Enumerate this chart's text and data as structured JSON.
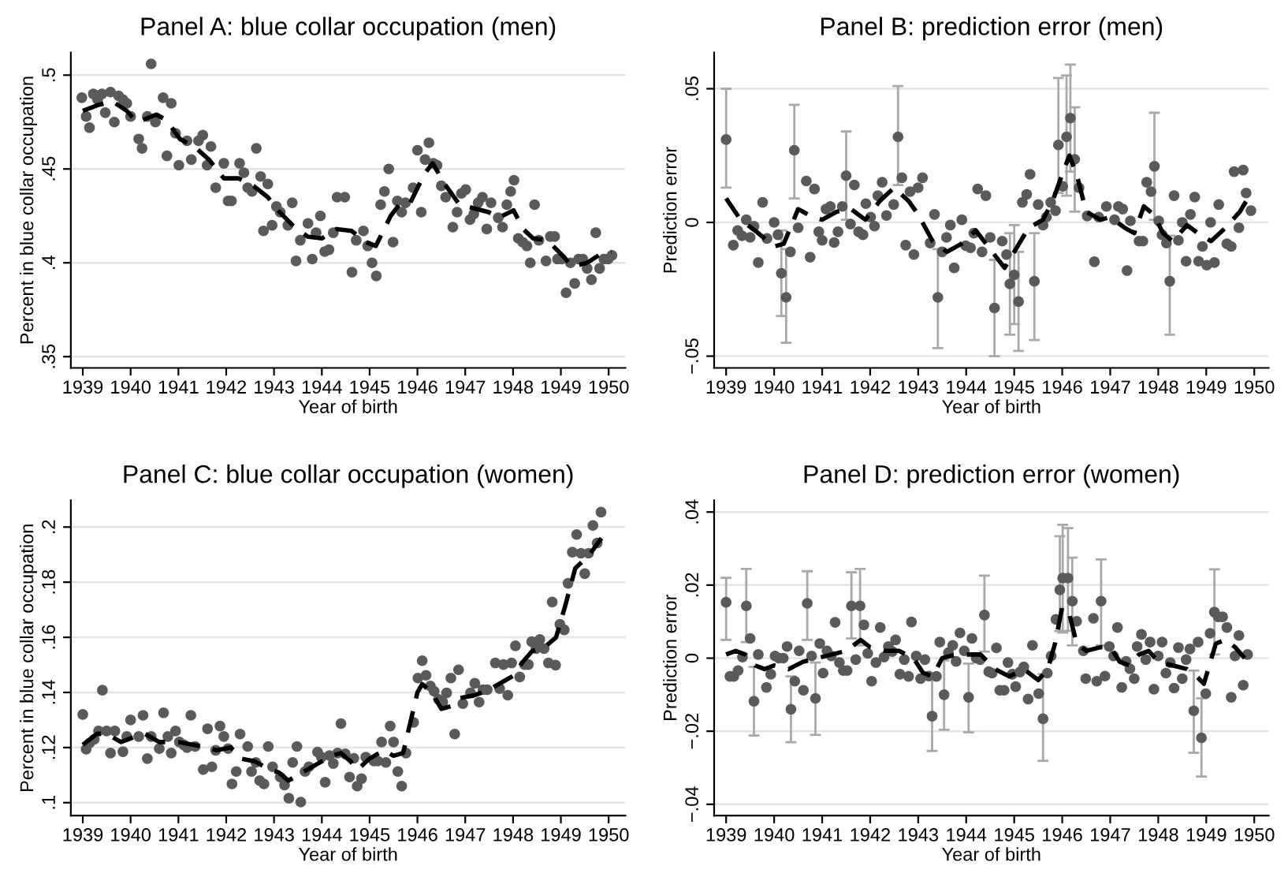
{
  "chart_data": [
    {
      "type": "scatter",
      "title": "Panel A: blue collar occupation (men)",
      "xlabel": "Year of birth",
      "ylabel": "Percent in blue collar occupation",
      "xlim": [
        1938.75,
        1950.35
      ],
      "xticks": [
        1939,
        1940,
        1941,
        1942,
        1943,
        1944,
        1945,
        1946,
        1947,
        1948,
        1949,
        1950
      ],
      "ylim": [
        0.344,
        0.512
      ],
      "yticks": [
        {
          "value": 0.35,
          "label": ".35"
        },
        {
          "value": 0.4,
          "label": ".4"
        },
        {
          "value": 0.45,
          "label": ".45"
        },
        {
          "value": 0.5,
          "label": ".5"
        }
      ],
      "grid": "y",
      "legend": false,
      "series": [
        {
          "type": "scatter",
          "marker": "circle",
          "color": "#5a5a5a",
          "x": [
            1938.98,
            1939.07,
            1939.14,
            1939.22,
            1939.31,
            1939.4,
            1939.47,
            1939.58,
            1939.66,
            1939.75,
            1939.84,
            1939.92,
            1940.0,
            1940.17,
            1940.24,
            1940.35,
            1940.43,
            1940.52,
            1940.68,
            1940.76,
            1940.85,
            1940.94,
            1941.01,
            1941.18,
            1941.27,
            1941.42,
            1941.51,
            1941.6,
            1941.68,
            1941.78,
            1941.95,
            1942.04,
            1942.11,
            1942.28,
            1942.37,
            1942.45,
            1942.54,
            1942.63,
            1942.72,
            1942.78,
            1942.87,
            1942.96,
            1943.05,
            1943.13,
            1943.29,
            1943.38,
            1943.46,
            1943.55,
            1943.71,
            1943.8,
            1943.88,
            1943.97,
            1944.06,
            1944.15,
            1944.24,
            1944.32,
            1944.48,
            1944.63,
            1944.72,
            1944.87,
            1944.96,
            1945.05,
            1945.14,
            1945.23,
            1945.31,
            1945.4,
            1945.49,
            1945.58,
            1945.67,
            1945.75,
            1945.91,
            1946.0,
            1946.08,
            1946.16,
            1946.24,
            1946.33,
            1946.41,
            1946.5,
            1946.59,
            1946.74,
            1946.83,
            1946.92,
            1947.01,
            1947.1,
            1947.18,
            1947.27,
            1947.36,
            1947.45,
            1947.54,
            1947.69,
            1947.78,
            1947.87,
            1947.95,
            1948.02,
            1948.11,
            1948.2,
            1948.29,
            1948.36,
            1948.45,
            1948.54,
            1948.69,
            1948.78,
            1948.87,
            1948.93,
            1949.02,
            1949.11,
            1949.2,
            1949.29,
            1949.37,
            1949.46,
            1949.55,
            1949.64,
            1949.73,
            1949.81,
            1949.9,
            1949.99,
            1950.07
          ],
          "values": [
            0.488,
            0.478,
            0.472,
            0.49,
            0.487,
            0.49,
            0.48,
            0.491,
            0.475,
            0.489,
            0.487,
            0.485,
            0.478,
            0.466,
            0.461,
            0.478,
            0.506,
            0.475,
            0.488,
            0.457,
            0.485,
            0.469,
            0.452,
            0.465,
            0.455,
            0.465,
            0.468,
            0.452,
            0.462,
            0.44,
            0.453,
            0.433,
            0.433,
            0.453,
            0.448,
            0.44,
            0.438,
            0.461,
            0.446,
            0.417,
            0.442,
            0.42,
            0.43,
            0.427,
            0.42,
            0.432,
            0.401,
            0.412,
            0.421,
            0.402,
            0.416,
            0.425,
            0.406,
            0.407,
            0.416,
            0.435,
            0.435,
            0.395,
            0.412,
            0.417,
            0.409,
            0.4,
            0.393,
            0.431,
            0.438,
            0.45,
            0.411,
            0.433,
            0.427,
            0.432,
            0.44,
            0.46,
            0.427,
            0.455,
            0.464,
            0.453,
            0.452,
            0.441,
            0.435,
            0.419,
            0.427,
            0.437,
            0.439,
            0.423,
            0.426,
            0.432,
            0.435,
            0.418,
            0.432,
            0.424,
            0.419,
            0.431,
            0.438,
            0.444,
            0.413,
            0.411,
            0.409,
            0.4,
            0.431,
            0.412,
            0.401,
            0.414,
            0.414,
            0.402,
            0.402,
            0.384,
            0.4,
            0.389,
            0.402,
            0.402,
            0.397,
            0.391,
            0.416,
            0.397,
            0.402,
            0.402,
            0.404
          ]
        },
        {
          "type": "line",
          "line_style": "dashed",
          "color": "#000000",
          "x": [
            1939.0,
            1939.31,
            1939.62,
            1939.92,
            1940.13,
            1940.34,
            1940.54,
            1940.75,
            1941.03,
            1941.33,
            1941.64,
            1941.95,
            1942.26,
            1942.57,
            1942.87,
            1943.08,
            1943.39,
            1943.7,
            1944.0,
            1944.31,
            1944.62,
            1944.93,
            1945.13,
            1945.44,
            1945.65,
            1945.85,
            1946.16,
            1946.32,
            1946.57,
            1946.88,
            1947.19,
            1947.49,
            1947.7,
            1948.01,
            1948.21,
            1948.42,
            1948.72,
            1949.03,
            1949.24,
            1949.55,
            1949.85,
            1950.06
          ],
          "values": [
            0.481,
            0.484,
            0.486,
            0.481,
            0.475,
            0.477,
            0.479,
            0.476,
            0.466,
            0.462,
            0.455,
            0.445,
            0.445,
            0.441,
            0.435,
            0.428,
            0.42,
            0.414,
            0.413,
            0.418,
            0.417,
            0.411,
            0.409,
            0.425,
            0.432,
            0.432,
            0.448,
            0.453,
            0.442,
            0.431,
            0.429,
            0.427,
            0.424,
            0.428,
            0.418,
            0.413,
            0.412,
            0.404,
            0.398,
            0.4,
            0.405,
            0.406
          ]
        }
      ]
    },
    {
      "type": "scatter",
      "title": "Panel B: prediction error (men)",
      "xlabel": "Year of birth",
      "ylabel": "Prediction error",
      "xlim": [
        1938.75,
        1950.3
      ],
      "xticks": [
        1939,
        1940,
        1941,
        1942,
        1943,
        1944,
        1945,
        1946,
        1947,
        1948,
        1949,
        1950
      ],
      "ylim": [
        -0.0544,
        0.0635
      ],
      "yticks": [
        {
          "value": -0.05,
          "label": "−.05"
        },
        {
          "value": 0,
          "label": "0"
        },
        {
          "value": 0.05,
          "label": ".05"
        }
      ],
      "grid": "y",
      "legend": false,
      "series": [
        {
          "type": "scatter",
          "marker": "circle",
          "color": "#5a5a5a",
          "x": [
            1939.0,
            1939.15,
            1939.24,
            1939.33,
            1939.42,
            1939.5,
            1939.58,
            1939.67,
            1939.76,
            1939.85,
            1940.0,
            1940.08,
            1940.15,
            1940.25,
            1940.34,
            1940.42,
            1940.5,
            1940.67,
            1940.75,
            1940.84,
            1940.93,
            1941.0,
            1941.08,
            1941.17,
            1941.25,
            1941.33,
            1941.42,
            1941.5,
            1941.59,
            1941.67,
            1941.76,
            1941.85,
            1941.91,
            1942.01,
            1942.09,
            1942.16,
            1942.25,
            1942.34,
            1942.49,
            1942.58,
            1942.66,
            1942.74,
            1942.83,
            1942.91,
            1943.0,
            1943.09,
            1943.25,
            1943.34,
            1943.41,
            1943.5,
            1943.59,
            1943.67,
            1943.75,
            1943.91,
            1943.99,
            1944.09,
            1944.16,
            1944.24,
            1944.33,
            1944.41,
            1944.5,
            1944.59,
            1944.75,
            1944.84,
            1944.91,
            1945.0,
            1945.09,
            1945.17,
            1945.26,
            1945.33,
            1945.42,
            1945.5,
            1945.6,
            1945.67,
            1945.76,
            1945.86,
            1945.92,
            1946.01,
            1946.09,
            1946.17,
            1946.26,
            1946.35,
            1946.52,
            1946.67,
            1946.76,
            1946.92,
            1947.09,
            1947.17,
            1947.26,
            1947.35,
            1947.42,
            1947.6,
            1947.68,
            1947.76,
            1947.85,
            1947.92,
            1948.01,
            1948.08,
            1948.17,
            1948.24,
            1948.33,
            1948.42,
            1948.5,
            1948.58,
            1948.67,
            1948.76,
            1948.84,
            1948.92,
            1949.01,
            1949.09,
            1949.17,
            1949.26,
            1949.43,
            1949.52,
            1949.58,
            1949.68,
            1949.77,
            1949.83,
            1949.93
          ],
          "values": [
            0.031,
            -0.0085,
            -0.003,
            -0.005,
            0.001,
            -0.0056,
            -0.0014,
            -0.015,
            0.0075,
            -0.006,
            0,
            -0.0046,
            -0.019,
            -0.028,
            -0.011,
            0.027,
            -0.002,
            0.0155,
            -0.013,
            0.0125,
            -0.0035,
            -0.0067,
            0.005,
            0.006,
            -0.0075,
            -0.0035,
            0.006,
            0.0175,
            -0.0006,
            0.014,
            -0.0035,
            -0.0046,
            0.007,
            0.002,
            -0.0014,
            0.01,
            0.015,
            0.0026,
            0.0067,
            0.032,
            0.0167,
            -0.0085,
            0.0115,
            -0.012,
            0.013,
            0.0167,
            -0.0077,
            0.003,
            -0.028,
            -0.011,
            -0.0056,
            -0.001,
            -0.017,
            0.001,
            -0.0087,
            -0.0095,
            -0.004,
            0.0125,
            -0.011,
            0.01,
            -0.0056,
            -0.032,
            -0.007,
            -0.012,
            -0.023,
            -0.0196,
            -0.0296,
            0.0075,
            0.0105,
            0.018,
            -0.022,
            0.0067,
            -0.001,
            0.002,
            0.0075,
            0.0044,
            0.029,
            0.0135,
            0.032,
            0.039,
            0.0236,
            0.013,
            0.0024,
            -0.0147,
            0.002,
            0.006,
            0.001,
            0.006,
            0.005,
            -0.018,
            0.0006,
            -0.007,
            -0.007,
            0.015,
            0.0115,
            0.021,
            0.0006,
            -0.0046,
            -0.0077,
            -0.022,
            0.01,
            -0.0067,
            0,
            -0.0145,
            0.003,
            0.0095,
            -0.0145,
            -0.009,
            -0.016,
            0,
            -0.015,
            0.0067,
            -0.008,
            -0.009,
            0.019,
            -0.002,
            0.0196,
            0.011,
            0.0044
          ],
          "errors": [
            [
              0.013,
              0.05
            ],
            null,
            null,
            null,
            null,
            null,
            null,
            null,
            null,
            null,
            null,
            null,
            [
              -0.035,
              -0.003
            ],
            [
              -0.045,
              -0.01
            ],
            null,
            [
              0.009,
              0.044
            ],
            null,
            null,
            null,
            null,
            null,
            null,
            null,
            null,
            null,
            null,
            null,
            [
              0.001,
              0.034
            ],
            null,
            null,
            null,
            null,
            null,
            null,
            null,
            null,
            null,
            null,
            null,
            [
              0.014,
              0.051
            ],
            null,
            null,
            null,
            null,
            null,
            null,
            null,
            null,
            [
              -0.047,
              -0.01
            ],
            null,
            null,
            null,
            null,
            null,
            null,
            null,
            null,
            null,
            null,
            null,
            null,
            [
              -0.05,
              -0.014
            ],
            null,
            null,
            [
              -0.042,
              -0.004
            ],
            [
              -0.038,
              -0.001
            ],
            [
              -0.048,
              -0.011
            ],
            null,
            null,
            null,
            [
              -0.044,
              -0.004
            ],
            null,
            null,
            null,
            null,
            null,
            [
              0.011,
              0.054
            ],
            null,
            [
              0.01,
              0.055
            ],
            [
              0.019,
              0.059
            ],
            [
              0.004,
              0.043
            ],
            null,
            null,
            null,
            null,
            null,
            null,
            null,
            null,
            null,
            null,
            null,
            null,
            null,
            null,
            [
              0.001,
              0.041
            ],
            null,
            null,
            null,
            [
              -0.042,
              -0.005
            ],
            null,
            null,
            null,
            null,
            null,
            null,
            null,
            null,
            null,
            null,
            null,
            null,
            null,
            null,
            null,
            null,
            null,
            null,
            null
          ]
        },
        {
          "type": "line",
          "line_style": "dashed",
          "color": "#000000",
          "x": [
            1939.0,
            1939.3,
            1939.6,
            1940.0,
            1940.2,
            1940.5,
            1940.8,
            1941.0,
            1941.3,
            1941.6,
            1941.9,
            1942.2,
            1942.5,
            1942.8,
            1943.0,
            1943.3,
            1943.6,
            1943.9,
            1944.2,
            1944.5,
            1944.8,
            1945.0,
            1945.3,
            1945.6,
            1945.8,
            1946.0,
            1946.15,
            1946.3,
            1946.5,
            1946.8,
            1947.0,
            1947.3,
            1947.5,
            1947.7,
            1947.9,
            1948.1,
            1948.3,
            1948.6,
            1948.9,
            1949.1,
            1949.4,
            1949.7,
            1949.9
          ],
          "values": [
            0.009,
            0.001,
            -0.003,
            -0.009,
            -0.008,
            0.005,
            0.002,
            0.001,
            0.004,
            0.005,
            0.001,
            0.008,
            0.013,
            0.008,
            0.003,
            -0.007,
            -0.011,
            -0.008,
            -0.003,
            -0.01,
            -0.017,
            -0.011,
            -0.002,
            0.001,
            0.008,
            0.018,
            0.025,
            0.018,
            0.004,
            0.001,
            0.002,
            -0.002,
            -0.004,
            0.006,
            0.003,
            -0.004,
            -0.007,
            -0.001,
            -0.005,
            -0.007,
            -0.002,
            0.004,
            0.01
          ]
        }
      ]
    },
    {
      "type": "scatter",
      "title": "Panel C: blue collar occupation (women)",
      "xlabel": "Year of birth",
      "ylabel": "Percent in blue collar occupation",
      "xlim": [
        1938.75,
        1950.35
      ],
      "xticks": [
        1939,
        1940,
        1941,
        1942,
        1943,
        1944,
        1945,
        1946,
        1947,
        1948,
        1949,
        1950
      ],
      "ylim": [
        0.0953,
        0.2097
      ],
      "yticks": [
        {
          "value": 0.1,
          "label": ".1"
        },
        {
          "value": 0.12,
          "label": ".12"
        },
        {
          "value": 0.14,
          "label": ".14"
        },
        {
          "value": 0.16,
          "label": ".16"
        },
        {
          "value": 0.18,
          "label": ".18"
        },
        {
          "value": 0.2,
          "label": ".2"
        }
      ],
      "grid": "y",
      "legend": false,
      "series": [
        {
          "type": "scatter",
          "marker": "circle",
          "color": "#5a5a5a",
          "x": [
            1939.0,
            1939.07,
            1939.14,
            1939.24,
            1939.33,
            1939.41,
            1939.5,
            1939.58,
            1939.67,
            1939.84,
            1939.92,
            1940.0,
            1940.17,
            1940.26,
            1940.35,
            1940.43,
            1940.6,
            1940.69,
            1940.78,
            1940.85,
            1940.94,
            1941.02,
            1941.11,
            1941.18,
            1941.26,
            1941.35,
            1941.52,
            1941.61,
            1941.7,
            1941.78,
            1941.87,
            1941.95,
            1942.04,
            1942.12,
            1942.21,
            1942.29,
            1942.45,
            1942.53,
            1942.62,
            1942.7,
            1942.79,
            1942.88,
            1942.97,
            1943.13,
            1943.22,
            1943.31,
            1943.39,
            1943.48,
            1943.56,
            1943.65,
            1943.73,
            1943.91,
            1943.99,
            1944.07,
            1944.16,
            1944.24,
            1944.33,
            1944.4,
            1944.49,
            1944.58,
            1944.67,
            1944.74,
            1944.83,
            1944.92,
            1945.09,
            1945.17,
            1945.25,
            1945.34,
            1945.43,
            1945.5,
            1945.59,
            1945.67,
            1945.76,
            1945.92,
            1946.01,
            1946.1,
            1946.18,
            1946.27,
            1946.35,
            1946.44,
            1946.53,
            1946.61,
            1946.7,
            1946.78,
            1946.86,
            1946.95,
            1947.11,
            1947.2,
            1947.29,
            1947.37,
            1947.46,
            1947.63,
            1947.72,
            1947.8,
            1947.89,
            1947.97,
            1948.05,
            1948.14,
            1948.24,
            1948.32,
            1948.39,
            1948.48,
            1948.56,
            1948.65,
            1948.74,
            1948.82,
            1948.89,
            1948.98,
            1949.07,
            1949.15,
            1949.24,
            1949.33,
            1949.42,
            1949.5,
            1949.58,
            1949.67,
            1949.76,
            1949.84
          ],
          "values": [
            0.132,
            0.1194,
            0.1216,
            0.123,
            0.126,
            0.1408,
            0.126,
            0.118,
            0.126,
            0.1185,
            0.124,
            0.13,
            0.124,
            0.1317,
            0.116,
            0.124,
            0.1196,
            0.1326,
            0.124,
            0.118,
            0.126,
            0.122,
            0.121,
            0.12,
            0.1317,
            0.1204,
            0.112,
            0.1268,
            0.113,
            0.119,
            0.1278,
            0.124,
            0.1196,
            0.1068,
            0.1113,
            0.1249,
            0.1204,
            0.1113,
            0.1146,
            0.108,
            0.1068,
            0.1204,
            0.113,
            0.1093,
            0.1064,
            0.1016,
            0.1146,
            0.1204,
            0.1002,
            0.1113,
            0.113,
            0.1184,
            0.1165,
            0.1074,
            0.1171,
            0.1142,
            0.118,
            0.1287,
            0.1177,
            0.1093,
            0.1161,
            0.106,
            0.1087,
            0.1165,
            0.1151,
            0.1151,
            0.122,
            0.1146,
            0.1278,
            0.122,
            0.1113,
            0.106,
            0.118,
            0.1291,
            0.1452,
            0.1515,
            0.1462,
            0.1423,
            0.1404,
            0.1375,
            0.1365,
            0.1398,
            0.1452,
            0.1249,
            0.1482,
            0.1359,
            0.1398,
            0.1433,
            0.1365,
            0.141,
            0.141,
            0.1507,
            0.1414,
            0.1501,
            0.139,
            0.1507,
            0.1569,
            0.1456,
            0.1501,
            0.1501,
            0.1584,
            0.1559,
            0.1592,
            0.1559,
            0.1507,
            0.1728,
            0.1499,
            0.1647,
            0.1627,
            0.1796,
            0.1909,
            0.1973,
            0.1905,
            0.1831,
            0.1905,
            0.2006,
            0.1942,
            0.2054
          ]
        },
        {
          "type": "line",
          "line_style": "dashed",
          "color": "#000000",
          "x": [
            1939.0,
            1939.3,
            1939.5,
            1939.8,
            1940.1,
            1940.3,
            1940.6,
            1941.0,
            1941.3,
            1941.6,
            1941.8,
            1942.1,
            1942.3,
            1942.6,
            1942.9,
            1943.1,
            1943.3,
            1943.6,
            1943.9,
            1944.2,
            1944.4,
            1944.6,
            1944.75,
            1945.0,
            1945.3,
            1945.5,
            1945.7,
            1946.0,
            1946.1,
            1946.3,
            1946.5,
            1946.7,
            1946.9,
            1947.2,
            1947.5,
            1947.8,
            1948.0,
            1948.2,
            1948.4,
            1948.7,
            1948.9,
            1949.1,
            1949.3,
            1949.6,
            1949.85
          ],
          "values": [
            0.121,
            0.125,
            0.125,
            0.122,
            0.124,
            0.125,
            0.122,
            0.122,
            0.121,
            0.12,
            0.119,
            0.12,
            0.116,
            0.115,
            0.112,
            0.111,
            0.108,
            0.111,
            0.114,
            0.117,
            0.118,
            0.115,
            0.112,
            0.116,
            0.119,
            0.117,
            0.118,
            0.14,
            0.143,
            0.14,
            0.134,
            0.135,
            0.138,
            0.139,
            0.141,
            0.144,
            0.146,
            0.151,
            0.155,
            0.157,
            0.16,
            0.172,
            0.185,
            0.19,
            0.196
          ]
        }
      ]
    },
    {
      "type": "scatter",
      "title": "Panel D: prediction error (women)",
      "xlabel": "Year of birth",
      "ylabel": "Prediction error",
      "xlim": [
        1938.75,
        1950.3
      ],
      "xticks": [
        1939,
        1940,
        1941,
        1942,
        1943,
        1944,
        1945,
        1946,
        1947,
        1948,
        1949,
        1950
      ],
      "ylim": [
        -0.0431,
        0.0432
      ],
      "yticks": [
        {
          "value": -0.04,
          "label": "−.04"
        },
        {
          "value": -0.02,
          "label": "−.02"
        },
        {
          "value": 0,
          "label": "0"
        },
        {
          "value": 0.02,
          "label": ".02"
        },
        {
          "value": 0.04,
          "label": ".04"
        }
      ],
      "grid": "y",
      "legend": false,
      "series": [
        {
          "type": "scatter",
          "marker": "circle",
          "color": "#5a5a5a",
          "x": [
            1939.0,
            1939.08,
            1939.16,
            1939.25,
            1939.34,
            1939.42,
            1939.5,
            1939.58,
            1939.67,
            1939.84,
            1939.93,
            1940.02,
            1940.1,
            1940.19,
            1940.27,
            1940.35,
            1940.43,
            1940.52,
            1940.61,
            1940.69,
            1940.78,
            1940.86,
            1940.95,
            1941.02,
            1941.1,
            1941.19,
            1941.27,
            1941.36,
            1941.44,
            1941.52,
            1941.61,
            1941.7,
            1941.79,
            1941.87,
            1941.95,
            1942.03,
            1942.12,
            1942.21,
            1942.29,
            1942.38,
            1942.46,
            1942.53,
            1942.62,
            1942.71,
            1942.8,
            1942.86,
            1942.96,
            1943.05,
            1943.14,
            1943.22,
            1943.29,
            1943.38,
            1943.45,
            1943.54,
            1943.63,
            1943.72,
            1943.79,
            1943.87,
            1943.96,
            1944.05,
            1944.12,
            1944.21,
            1944.29,
            1944.38,
            1944.47,
            1944.54,
            1944.63,
            1944.7,
            1944.79,
            1944.87,
            1944.96,
            1945.03,
            1945.12,
            1945.2,
            1945.29,
            1945.38,
            1945.51,
            1945.6,
            1945.69,
            1945.77,
            1945.87,
            1945.95,
            1946.01,
            1946.12,
            1946.21,
            1946.3,
            1946.44,
            1946.49,
            1946.65,
            1946.72,
            1946.81,
            1946.89,
            1946.98,
            1947.07,
            1947.15,
            1947.24,
            1947.33,
            1947.41,
            1947.5,
            1947.56,
            1947.65,
            1947.74,
            1947.83,
            1947.91,
            1948.0,
            1948.08,
            1948.16,
            1948.25,
            1948.33,
            1948.42,
            1948.5,
            1948.58,
            1948.66,
            1948.74,
            1948.83,
            1948.9,
            1948.99,
            1949.08,
            1949.17,
            1949.25,
            1949.34,
            1949.43,
            1949.52,
            1949.6,
            1949.68,
            1949.77,
            1949.86
          ],
          "values": [
            0.0153,
            -0.005,
            -0.005,
            -0.0034,
            0.0003,
            0.0143,
            0.0054,
            -0.0118,
            0.001,
            -0.008,
            -0.0044,
            0.0006,
            0,
            0,
            0.0032,
            -0.014,
            -0.0063,
            0.002,
            -0.0088,
            0.015,
            0.0006,
            -0.011,
            0.004,
            -0.0041,
            0.002,
            0.0006,
            0.0098,
            -0.0012,
            -0.0034,
            -0.0034,
            0.0143,
            -0.0004,
            0.0143,
            0.0091,
            0.0013,
            -0.0063,
            -0.0012,
            0.0084,
            0.0003,
            0.0032,
            0.0018,
            0.005,
            -0.0044,
            -0.0004,
            -0.005,
            0.0099,
            0.0006,
            -0.0056,
            -0.0004,
            -0.0049,
            -0.0159,
            -0.005,
            0.0044,
            -0.01,
            0.0015,
            0.0035,
            -0.0009,
            0.0069,
            0.002,
            -0.0107,
            0.0054,
            0,
            -0.0004,
            0.0118,
            -0.0037,
            -0.0041,
            0.0028,
            -0.0088,
            -0.0088,
            -0.0012,
            -0.0044,
            -0.0078,
            -0.0038,
            -0.0024,
            -0.0112,
            0.0035,
            -0.0097,
            -0.0166,
            -0.0041,
            0.0006,
            0.0106,
            0.0187,
            0.0219,
            0.0219,
            0.0156,
            0.0101,
            0.002,
            -0.0056,
            0.0109,
            -0.0063,
            0.0156,
            -0.0049,
            0.0032,
            0.0006,
            0.0084,
            -0.008,
            -0.0009,
            -0.0029,
            -0.0056,
            0.0032,
            0.0065,
            -0.0004,
            0.0044,
            -0.0085,
            0.0006,
            0.0044,
            -0.0041,
            -0.0012,
            -0.0082,
            0.0029,
            -0.0056,
            -0.0004,
            0.0025,
            -0.0144,
            0.0044,
            -0.0218,
            -0.0097,
            0.0068,
            0.0126,
            0.0113,
            0.0113,
            0.0084,
            -0.0107,
            0.0006,
            0.0062,
            -0.0074,
            0.001
          ],
          "errors": [
            [
              0.005,
              0.022
            ],
            null,
            null,
            null,
            null,
            [
              0.0044,
              0.0244
            ],
            null,
            [
              -0.0212,
              -0.0024
            ],
            null,
            null,
            null,
            null,
            null,
            null,
            null,
            [
              -0.023,
              -0.005
            ],
            null,
            null,
            null,
            [
              0.005,
              0.0238
            ],
            null,
            [
              -0.021,
              -0.0012
            ],
            null,
            null,
            null,
            null,
            null,
            null,
            null,
            null,
            [
              0.0054,
              0.0235
            ],
            null,
            [
              0.0035,
              0.0244
            ],
            null,
            null,
            null,
            null,
            null,
            null,
            null,
            null,
            null,
            null,
            null,
            null,
            null,
            null,
            null,
            null,
            null,
            [
              -0.0254,
              -0.006
            ],
            null,
            null,
            [
              -0.0196,
              -0.0006
            ],
            null,
            null,
            null,
            null,
            null,
            [
              -0.0203,
              -0.0015
            ],
            null,
            null,
            null,
            [
              0.0018,
              0.0226
            ],
            null,
            null,
            null,
            null,
            null,
            null,
            null,
            null,
            null,
            null,
            null,
            null,
            null,
            [
              -0.0281,
              -0.0044
            ],
            null,
            null,
            null,
            [
              0.0074,
              0.0334
            ],
            [
              0.007,
              0.0365
            ],
            [
              0.0075,
              0.0356
            ],
            [
              0.0035,
              0.0275
            ],
            null,
            null,
            null,
            null,
            null,
            [
              0.0035,
              0.027
            ],
            null,
            null,
            null,
            null,
            null,
            null,
            null,
            null,
            null,
            null,
            null,
            null,
            null,
            null,
            null,
            null,
            null,
            null,
            null,
            null,
            null,
            null,
            [
              -0.0259,
              -0.0034
            ],
            null,
            [
              -0.0324,
              -0.011
            ],
            null,
            null,
            [
              0.001,
              0.0243
            ],
            null,
            null,
            null,
            null,
            null,
            null,
            null,
            null
          ]
        },
        {
          "type": "line",
          "line_style": "dashed",
          "color": "#000000",
          "x": [
            1939.0,
            1939.2,
            1939.4,
            1939.6,
            1939.8,
            1940.0,
            1940.3,
            1940.6,
            1940.9,
            1941.2,
            1941.5,
            1941.8,
            1942.0,
            1942.3,
            1942.6,
            1942.9,
            1943.1,
            1943.3,
            1943.5,
            1943.8,
            1944.0,
            1944.3,
            1944.6,
            1944.9,
            1945.2,
            1945.5,
            1945.7,
            1945.85,
            1946.0,
            1946.15,
            1946.3,
            1946.5,
            1946.8,
            1947.0,
            1947.2,
            1947.4,
            1947.6,
            1947.8,
            1948.0,
            1948.3,
            1948.6,
            1948.8,
            1948.95,
            1949.2,
            1949.4,
            1949.6,
            1949.8
          ],
          "values": [
            0.001,
            0.002,
            0.001,
            -0.002,
            -0.003,
            -0.002,
            -0.003,
            -0.001,
            0.0,
            0.001,
            0.002,
            0.005,
            0.003,
            0.002,
            0.002,
            0.0,
            -0.004,
            -0.005,
            0.0,
            0.001,
            0.001,
            0.001,
            -0.003,
            -0.005,
            -0.003,
            -0.006,
            -0.003,
            0.004,
            0.014,
            0.012,
            0.004,
            0.002,
            0.003,
            0.003,
            -0.001,
            -0.002,
            0.001,
            0.002,
            -0.001,
            -0.002,
            -0.003,
            -0.005,
            -0.007,
            0.004,
            0.005,
            0.003,
            0.0
          ]
        }
      ]
    }
  ]
}
